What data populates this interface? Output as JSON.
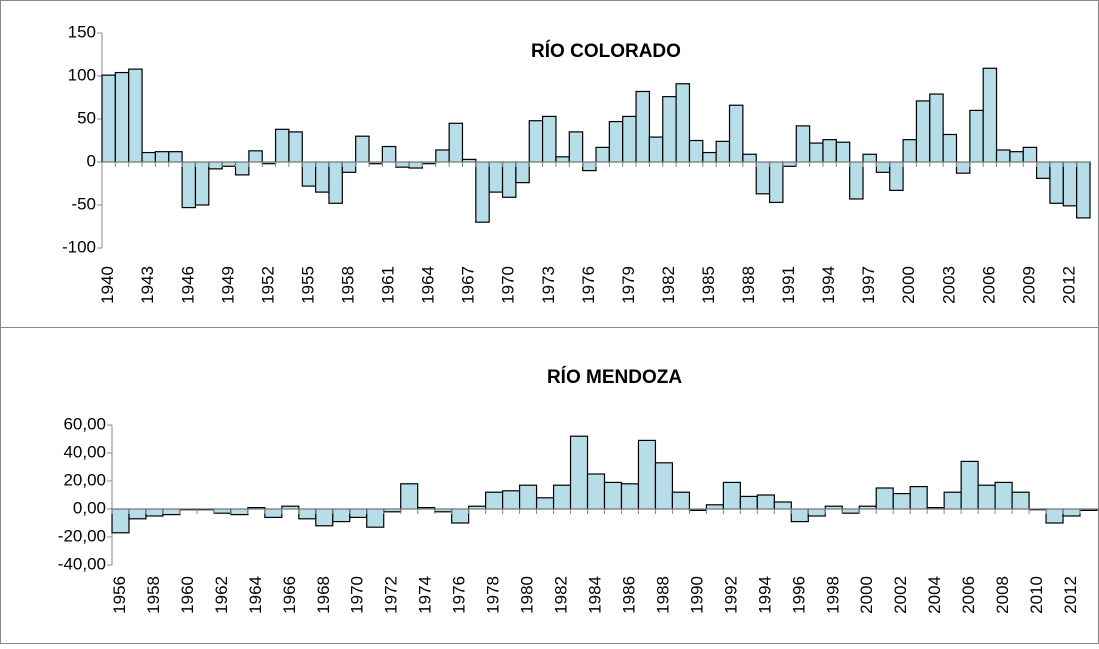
{
  "chart_data": [
    {
      "type": "bar",
      "title": "RÍO COLORADO",
      "categories": [
        "1940",
        null,
        null,
        "1943",
        null,
        null,
        "1946",
        null,
        null,
        "1949",
        null,
        null,
        "1952",
        null,
        null,
        "1955",
        null,
        null,
        "1958",
        null,
        null,
        "1961",
        null,
        null,
        "1964",
        null,
        null,
        "1967",
        null,
        null,
        "1970",
        null,
        null,
        "1973",
        null,
        null,
        "1976",
        null,
        null,
        "1979",
        null,
        null,
        "1982",
        null,
        null,
        "1985",
        null,
        null,
        "1988",
        null,
        null,
        "1991",
        null,
        null,
        "1994",
        null,
        null,
        "1997",
        null,
        null,
        "2000",
        null,
        null,
        "2003",
        null,
        null,
        "2006",
        null,
        null,
        "2009",
        null,
        null,
        "2012",
        null
      ],
      "values": [
        101,
        104,
        108,
        11,
        12,
        12,
        -53,
        -50,
        -8,
        -5,
        -15,
        13,
        -2,
        38,
        35,
        -28,
        -35,
        -48,
        -12,
        30,
        -2,
        18,
        -6,
        -7,
        -2,
        14,
        45,
        3,
        -70,
        -35,
        -41,
        -24,
        48,
        53,
        6,
        35,
        -10,
        17,
        47,
        53,
        82,
        29,
        76,
        91,
        25,
        11,
        24,
        66,
        9,
        -37,
        -47,
        -5,
        42,
        22,
        26,
        23,
        -43,
        9,
        -12,
        -33,
        26,
        71,
        79,
        32,
        -13,
        60,
        109,
        14,
        12,
        17,
        -19,
        -48,
        -51,
        -65
      ],
      "color": "#b7dee8",
      "ylim": [
        -100,
        150
      ],
      "yticks": [
        -100,
        -50,
        0,
        50,
        100,
        150
      ]
    },
    {
      "type": "bar",
      "title": "RÍO MENDOZA",
      "categories": [
        "1956",
        null,
        "1958",
        null,
        "1960",
        null,
        "1962",
        null,
        "1964",
        null,
        "1966",
        null,
        "1968",
        null,
        "1970",
        null,
        "1972",
        null,
        "1974",
        null,
        "1976",
        null,
        "1978",
        null,
        "1980",
        null,
        "1982",
        null,
        "1984",
        null,
        "1986",
        null,
        "1988",
        null,
        "1990",
        null,
        "1992",
        null,
        "1994",
        null,
        "1996",
        null,
        "1998",
        null,
        "2000",
        null,
        "2002",
        null,
        "2004",
        null,
        "2006",
        null,
        "2008",
        null,
        "2010",
        null,
        "2012",
        null
      ],
      "values": [
        -17,
        -7,
        -5,
        -4,
        -0.5,
        -0.5,
        -3,
        -4,
        1,
        -6,
        2,
        -7,
        -12,
        -9,
        -6,
        -13,
        -2,
        18,
        1,
        -2,
        -10,
        2,
        12,
        13,
        17,
        8,
        17,
        52,
        25,
        19,
        18,
        49,
        33,
        12,
        -1,
        3,
        19,
        9,
        10,
        5,
        -9,
        -5,
        2,
        -3,
        2,
        15,
        11,
        16,
        1,
        12,
        34,
        17,
        19,
        12,
        -0.5,
        -10,
        -5,
        -1
      ],
      "color": "#b7dee8",
      "ylim": [
        -40,
        60
      ],
      "yticks": [
        {
          "value": -40,
          "label": "-40,00"
        },
        {
          "value": -20,
          "label": "-20,00"
        },
        {
          "value": 0,
          "label": "0,00"
        },
        {
          "value": 20,
          "label": "20,00"
        },
        {
          "value": 40,
          "label": "40,00"
        },
        {
          "value": 60,
          "label": "60,00"
        }
      ]
    }
  ]
}
